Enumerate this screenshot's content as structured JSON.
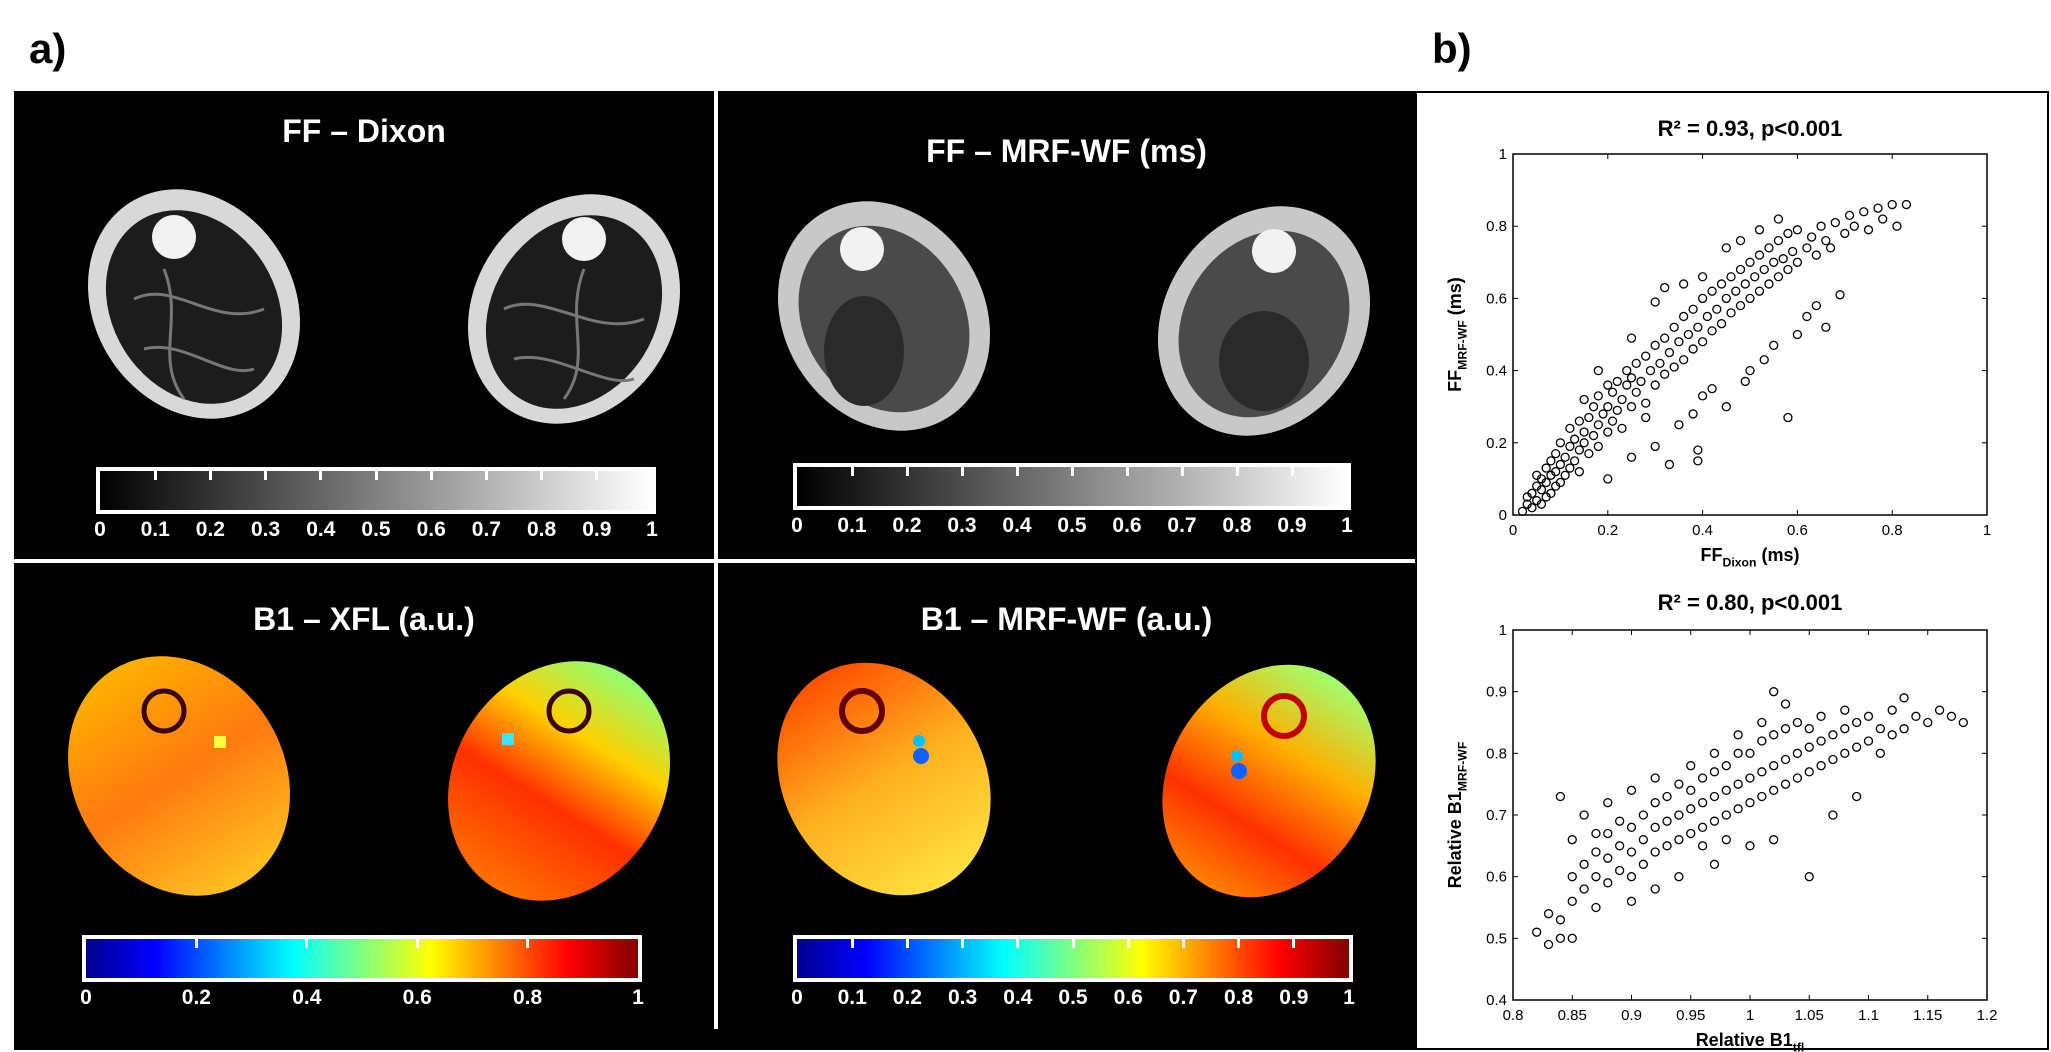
{
  "labels": {
    "panel_a": "a)",
    "panel_b": "b)"
  },
  "images": {
    "ff_dixon": {
      "title": "FF – Dixon"
    },
    "ff_mrf": {
      "title": "FF – MRF-WF (ms)"
    },
    "b1_xfl": {
      "title": "B1 – XFL (a.u.)"
    },
    "b1_mrf": {
      "title": "B1 – MRF-WF (a.u.)"
    }
  },
  "colorbars": {
    "ff_dixon": {
      "colormap": "gray",
      "ticks": [
        "0",
        "0.1",
        "0.2",
        "0.3",
        "0.4",
        "0.5",
        "0.6",
        "0.7",
        "0.8",
        "0.9",
        "1"
      ]
    },
    "ff_mrf": {
      "colormap": "gray",
      "ticks": [
        "0",
        "0.1",
        "0.2",
        "0.3",
        "0.4",
        "0.5",
        "0.6",
        "0.7",
        "0.8",
        "0.9",
        "1"
      ]
    },
    "b1_xfl": {
      "colormap": "jet",
      "ticks": [
        "0",
        "0.2",
        "0.4",
        "0.6",
        "0.8",
        "1"
      ]
    },
    "b1_mrf": {
      "colormap": "jet",
      "ticks": [
        "0",
        "0.1",
        "0.2",
        "0.3",
        "0.4",
        "0.5",
        "0.6",
        "0.7",
        "0.8",
        "0.9",
        "1"
      ]
    }
  },
  "colors": {
    "jet": [
      "#00008f",
      "#0000ff",
      "#0080ff",
      "#00ffff",
      "#80ff80",
      "#ffff00",
      "#ff8000",
      "#ff0000",
      "#800000"
    ],
    "gray": [
      "#000000",
      "#ffffff"
    ],
    "marker": "#000000"
  },
  "chart_data": [
    {
      "type": "scatter",
      "title": "R² = 0.93, p<0.001",
      "xlabel": "FF",
      "xlabel_sub": "Dixon",
      "xlabel_suffix": " (ms)",
      "ylabel": "FF",
      "ylabel_sub": "MRF-WF",
      "ylabel_suffix": " (ms)",
      "xlim": [
        0,
        1
      ],
      "ylim": [
        0,
        1
      ],
      "xticks": [
        0,
        0.2,
        0.4,
        0.6,
        0.8,
        1
      ],
      "yticks": [
        0,
        0.2,
        0.4,
        0.6,
        0.8,
        1
      ],
      "xtick_labels": [
        "0",
        "0.2",
        "0.4",
        "0.6",
        "0.8",
        "1"
      ],
      "ytick_labels": [
        "0",
        "0.2",
        "0.4",
        "0.6",
        "0.8",
        "1"
      ],
      "marker": "open-circle",
      "grid": false,
      "points": [
        [
          0.02,
          0.01
        ],
        [
          0.03,
          0.03
        ],
        [
          0.03,
          0.05
        ],
        [
          0.04,
          0.02
        ],
        [
          0.04,
          0.06
        ],
        [
          0.05,
          0.04
        ],
        [
          0.05,
          0.08
        ],
        [
          0.05,
          0.11
        ],
        [
          0.06,
          0.03
        ],
        [
          0.06,
          0.07
        ],
        [
          0.06,
          0.1
        ],
        [
          0.07,
          0.05
        ],
        [
          0.07,
          0.09
        ],
        [
          0.07,
          0.13
        ],
        [
          0.08,
          0.06
        ],
        [
          0.08,
          0.11
        ],
        [
          0.08,
          0.15
        ],
        [
          0.09,
          0.08
        ],
        [
          0.09,
          0.12
        ],
        [
          0.09,
          0.17
        ],
        [
          0.1,
          0.09
        ],
        [
          0.1,
          0.14
        ],
        [
          0.1,
          0.2
        ],
        [
          0.11,
          0.11
        ],
        [
          0.11,
          0.16
        ],
        [
          0.12,
          0.13
        ],
        [
          0.12,
          0.19
        ],
        [
          0.12,
          0.24
        ],
        [
          0.13,
          0.15
        ],
        [
          0.13,
          0.21
        ],
        [
          0.14,
          0.12
        ],
        [
          0.14,
          0.18
        ],
        [
          0.14,
          0.26
        ],
        [
          0.15,
          0.2
        ],
        [
          0.15,
          0.23
        ],
        [
          0.16,
          0.17
        ],
        [
          0.16,
          0.27
        ],
        [
          0.17,
          0.22
        ],
        [
          0.17,
          0.3
        ],
        [
          0.18,
          0.19
        ],
        [
          0.18,
          0.25
        ],
        [
          0.18,
          0.33
        ],
        [
          0.19,
          0.28
        ],
        [
          0.2,
          0.23
        ],
        [
          0.2,
          0.3
        ],
        [
          0.21,
          0.26
        ],
        [
          0.21,
          0.34
        ],
        [
          0.22,
          0.29
        ],
        [
          0.22,
          0.37
        ],
        [
          0.23,
          0.32
        ],
        [
          0.23,
          0.24
        ],
        [
          0.24,
          0.36
        ],
        [
          0.24,
          0.4
        ],
        [
          0.25,
          0.3
        ],
        [
          0.25,
          0.38
        ],
        [
          0.26,
          0.34
        ],
        [
          0.26,
          0.42
        ],
        [
          0.27,
          0.37
        ],
        [
          0.28,
          0.31
        ],
        [
          0.28,
          0.44
        ],
        [
          0.29,
          0.4
        ],
        [
          0.3,
          0.36
        ],
        [
          0.3,
          0.47
        ],
        [
          0.31,
          0.42
        ],
        [
          0.32,
          0.39
        ],
        [
          0.32,
          0.49
        ],
        [
          0.33,
          0.45
        ],
        [
          0.34,
          0.41
        ],
        [
          0.34,
          0.52
        ],
        [
          0.35,
          0.48
        ],
        [
          0.36,
          0.43
        ],
        [
          0.36,
          0.55
        ],
        [
          0.37,
          0.5
        ],
        [
          0.38,
          0.46
        ],
        [
          0.38,
          0.57
        ],
        [
          0.39,
          0.52
        ],
        [
          0.4,
          0.48
        ],
        [
          0.4,
          0.6
        ],
        [
          0.41,
          0.55
        ],
        [
          0.42,
          0.51
        ],
        [
          0.42,
          0.62
        ],
        [
          0.43,
          0.57
        ],
        [
          0.44,
          0.53
        ],
        [
          0.44,
          0.64
        ],
        [
          0.45,
          0.6
        ],
        [
          0.46,
          0.56
        ],
        [
          0.46,
          0.66
        ],
        [
          0.47,
          0.62
        ],
        [
          0.48,
          0.58
        ],
        [
          0.48,
          0.68
        ],
        [
          0.49,
          0.64
        ],
        [
          0.5,
          0.6
        ],
        [
          0.5,
          0.7
        ],
        [
          0.51,
          0.66
        ],
        [
          0.52,
          0.62
        ],
        [
          0.52,
          0.72
        ],
        [
          0.53,
          0.68
        ],
        [
          0.54,
          0.64
        ],
        [
          0.54,
          0.74
        ],
        [
          0.55,
          0.7
        ],
        [
          0.56,
          0.66
        ],
        [
          0.56,
          0.76
        ],
        [
          0.57,
          0.71
        ],
        [
          0.58,
          0.68
        ],
        [
          0.58,
          0.78
        ],
        [
          0.59,
          0.73
        ],
        [
          0.6,
          0.7
        ],
        [
          0.6,
          0.79
        ],
        [
          0.62,
          0.74
        ],
        [
          0.63,
          0.77
        ],
        [
          0.64,
          0.72
        ],
        [
          0.65,
          0.8
        ],
        [
          0.66,
          0.76
        ],
        [
          0.67,
          0.74
        ],
        [
          0.68,
          0.81
        ],
        [
          0.7,
          0.78
        ],
        [
          0.71,
          0.83
        ],
        [
          0.72,
          0.8
        ],
        [
          0.74,
          0.84
        ],
        [
          0.75,
          0.79
        ],
        [
          0.77,
          0.85
        ],
        [
          0.78,
          0.82
        ],
        [
          0.8,
          0.86
        ],
        [
          0.81,
          0.8
        ],
        [
          0.83,
          0.86
        ],
        [
          0.15,
          0.32
        ],
        [
          0.18,
          0.4
        ],
        [
          0.2,
          0.36
        ],
        [
          0.25,
          0.49
        ],
        [
          0.3,
          0.59
        ],
        [
          0.32,
          0.63
        ],
        [
          0.36,
          0.64
        ],
        [
          0.4,
          0.66
        ],
        [
          0.45,
          0.74
        ],
        [
          0.48,
          0.76
        ],
        [
          0.52,
          0.79
        ],
        [
          0.56,
          0.82
        ],
        [
          0.2,
          0.1
        ],
        [
          0.25,
          0.16
        ],
        [
          0.3,
          0.19
        ],
        [
          0.33,
          0.14
        ],
        [
          0.38,
          0.28
        ],
        [
          0.4,
          0.33
        ],
        [
          0.42,
          0.35
        ],
        [
          0.45,
          0.3
        ],
        [
          0.49,
          0.37
        ],
        [
          0.5,
          0.4
        ],
        [
          0.53,
          0.43
        ],
        [
          0.55,
          0.47
        ],
        [
          0.58,
          0.27
        ],
        [
          0.6,
          0.5
        ],
        [
          0.62,
          0.55
        ],
        [
          0.64,
          0.58
        ],
        [
          0.66,
          0.52
        ],
        [
          0.69,
          0.61
        ],
        [
          0.39,
          0.15
        ],
        [
          0.39,
          0.18
        ],
        [
          0.35,
          0.25
        ],
        [
          0.28,
          0.27
        ]
      ]
    },
    {
      "type": "scatter",
      "title": "R² = 0.80, p<0.001",
      "xlabel": "Relative B1",
      "xlabel_sub": "tfl",
      "xlabel_suffix": "",
      "ylabel": "Relative B1",
      "ylabel_sub": "MRF-WF",
      "ylabel_suffix": "",
      "xlim": [
        0.8,
        1.2
      ],
      "ylim": [
        0.4,
        1
      ],
      "xticks": [
        0.8,
        0.85,
        0.9,
        0.95,
        1,
        1.05,
        1.1,
        1.15,
        1.2
      ],
      "yticks": [
        0.4,
        0.5,
        0.6,
        0.7,
        0.8,
        0.9,
        1
      ],
      "xtick_labels": [
        "0.8",
        "0.85",
        "0.9",
        "0.95",
        "1",
        "1.05",
        "1.1",
        "1.15",
        "1.2"
      ],
      "ytick_labels": [
        "0.4",
        "0.5",
        "0.6",
        "0.7",
        "0.8",
        "0.9",
        "1"
      ],
      "marker": "open-circle",
      "grid": false,
      "points": [
        [
          0.82,
          0.51
        ],
        [
          0.83,
          0.49
        ],
        [
          0.83,
          0.54
        ],
        [
          0.84,
          0.5
        ],
        [
          0.84,
          0.73
        ],
        [
          0.85,
          0.5
        ],
        [
          0.85,
          0.56
        ],
        [
          0.85,
          0.6
        ],
        [
          0.86,
          0.58
        ],
        [
          0.86,
          0.62
        ],
        [
          0.87,
          0.55
        ],
        [
          0.87,
          0.6
        ],
        [
          0.87,
          0.64
        ],
        [
          0.88,
          0.59
        ],
        [
          0.88,
          0.63
        ],
        [
          0.88,
          0.67
        ],
        [
          0.89,
          0.61
        ],
        [
          0.89,
          0.65
        ],
        [
          0.89,
          0.69
        ],
        [
          0.9,
          0.6
        ],
        [
          0.9,
          0.64
        ],
        [
          0.9,
          0.68
        ],
        [
          0.91,
          0.62
        ],
        [
          0.91,
          0.66
        ],
        [
          0.91,
          0.7
        ],
        [
          0.92,
          0.64
        ],
        [
          0.92,
          0.68
        ],
        [
          0.92,
          0.72
        ],
        [
          0.93,
          0.65
        ],
        [
          0.93,
          0.69
        ],
        [
          0.93,
          0.73
        ],
        [
          0.94,
          0.66
        ],
        [
          0.94,
          0.7
        ],
        [
          0.94,
          0.75
        ],
        [
          0.95,
          0.67
        ],
        [
          0.95,
          0.71
        ],
        [
          0.95,
          0.74
        ],
        [
          0.96,
          0.68
        ],
        [
          0.96,
          0.72
        ],
        [
          0.96,
          0.76
        ],
        [
          0.97,
          0.69
        ],
        [
          0.97,
          0.73
        ],
        [
          0.97,
          0.77
        ],
        [
          0.98,
          0.7
        ],
        [
          0.98,
          0.74
        ],
        [
          0.98,
          0.78
        ],
        [
          0.99,
          0.71
        ],
        [
          0.99,
          0.75
        ],
        [
          0.99,
          0.8
        ],
        [
          1.0,
          0.72
        ],
        [
          1.0,
          0.76
        ],
        [
          1.0,
          0.8
        ],
        [
          1.01,
          0.73
        ],
        [
          1.01,
          0.77
        ],
        [
          1.01,
          0.82
        ],
        [
          1.02,
          0.74
        ],
        [
          1.02,
          0.78
        ],
        [
          1.02,
          0.83
        ],
        [
          1.03,
          0.75
        ],
        [
          1.03,
          0.79
        ],
        [
          1.03,
          0.84
        ],
        [
          1.04,
          0.76
        ],
        [
          1.04,
          0.8
        ],
        [
          1.04,
          0.85
        ],
        [
          1.05,
          0.77
        ],
        [
          1.05,
          0.81
        ],
        [
          1.05,
          0.84
        ],
        [
          1.06,
          0.78
        ],
        [
          1.06,
          0.82
        ],
        [
          1.06,
          0.86
        ],
        [
          1.07,
          0.79
        ],
        [
          1.07,
          0.83
        ],
        [
          1.08,
          0.8
        ],
        [
          1.08,
          0.84
        ],
        [
          1.08,
          0.87
        ],
        [
          1.09,
          0.81
        ],
        [
          1.09,
          0.85
        ],
        [
          1.1,
          0.82
        ],
        [
          1.1,
          0.86
        ],
        [
          1.11,
          0.8
        ],
        [
          1.11,
          0.84
        ],
        [
          1.12,
          0.83
        ],
        [
          1.12,
          0.87
        ],
        [
          1.13,
          0.84
        ],
        [
          1.13,
          0.89
        ],
        [
          1.14,
          0.86
        ],
        [
          1.15,
          0.85
        ],
        [
          1.16,
          0.87
        ],
        [
          1.17,
          0.86
        ],
        [
          1.18,
          0.85
        ],
        [
          0.86,
          0.7
        ],
        [
          0.88,
          0.72
        ],
        [
          0.9,
          0.74
        ],
        [
          0.92,
          0.76
        ],
        [
          0.95,
          0.78
        ],
        [
          0.97,
          0.8
        ],
        [
          0.99,
          0.83
        ],
        [
          1.01,
          0.85
        ],
        [
          1.02,
          0.9
        ],
        [
          1.03,
          0.88
        ],
        [
          0.9,
          0.56
        ],
        [
          0.92,
          0.58
        ],
        [
          0.94,
          0.6
        ],
        [
          0.97,
          0.62
        ],
        [
          1.0,
          0.65
        ],
        [
          1.02,
          0.66
        ],
        [
          1.05,
          0.6
        ],
        [
          1.07,
          0.7
        ],
        [
          1.09,
          0.73
        ],
        [
          0.84,
          0.53
        ],
        [
          0.85,
          0.66
        ],
        [
          0.87,
          0.67
        ],
        [
          0.96,
          0.65
        ],
        [
          0.98,
          0.66
        ]
      ]
    }
  ]
}
